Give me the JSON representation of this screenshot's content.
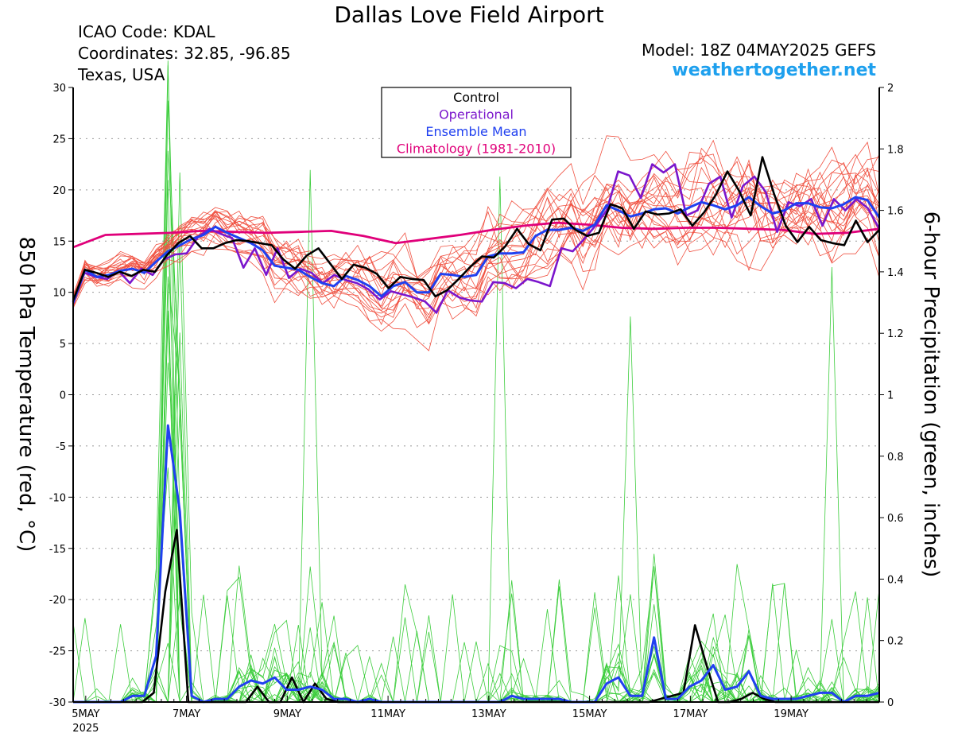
{
  "header": {
    "title": "Dallas Love Field Airport",
    "icao": "ICAO Code: KDAL",
    "coordinates": "Coordinates: 32.85, -96.85",
    "location": "Texas, USA",
    "model": "Model: 18Z 04MAY2025 GEFS",
    "site": "weathertogether.net"
  },
  "chart_data": {
    "type": "line",
    "title": "Dallas Love Field Airport",
    "ylabel_left": "850 hPa Temperature (red, °C)",
    "ylabel_right": "6-hour Precipitation (green, inches)",
    "y_left_range": [
      -30,
      30
    ],
    "y_right_range": [
      0,
      2
    ],
    "y_left_ticks": [
      "30",
      "25",
      "20",
      "15",
      "10",
      "5",
      "0",
      "-5",
      "-10",
      "-15",
      "-20",
      "-25",
      "-30"
    ],
    "y_right_ticks": [
      "2",
      "1.8",
      "1.6",
      "1.4",
      "1.2",
      "1",
      "0.8",
      "0.6",
      "0.4",
      "0.2",
      "0"
    ],
    "x_ticks": [
      {
        "day": 5,
        "label": "5MAY",
        "sub": "2025"
      },
      {
        "day": 7,
        "label": "7MAY"
      },
      {
        "day": 9,
        "label": "9MAY"
      },
      {
        "day": 11,
        "label": "11MAY"
      },
      {
        "day": 13,
        "label": "13MAY"
      },
      {
        "day": 15,
        "label": "15MAY"
      },
      {
        "day": 17,
        "label": "17MAY"
      },
      {
        "day": 19,
        "label": "19MAY"
      }
    ],
    "x_range_days": [
      4.75,
      20.75
    ],
    "grid": "horizontal dotted",
    "legend": {
      "position": "top-center",
      "entries": [
        {
          "label": "Control",
          "color": "#000000"
        },
        {
          "label": "Operational",
          "color": "#7b16cc"
        },
        {
          "label": "Ensemble Mean",
          "color": "#2040f0"
        },
        {
          "label": "Climatology (1981-2010)",
          "color": "#e0007a"
        }
      ]
    },
    "colors": {
      "members_temp": "#f05040",
      "members_precip": "#3ccd3c",
      "control": "#000000",
      "operational": "#7b16cc",
      "mean": "#2040f0",
      "climatology": "#e0007a"
    },
    "series": [
      {
        "name": "Control",
        "axis": "temperature",
        "values": [
          9.2,
          12.2,
          11.9,
          11.5,
          12.0,
          11.6,
          12.2,
          12.0,
          13.6,
          14.8,
          15.5,
          14.3,
          14.3,
          14.8,
          15.1,
          15.0,
          14.8,
          14.6,
          13.2,
          12.3,
          13.6,
          14.3,
          12.8,
          11.3,
          12.7,
          12.4,
          11.8,
          10.4,
          11.5,
          11.3,
          11.2,
          9.6,
          10.2,
          11.3,
          12.5,
          13.5,
          13.4,
          14.5,
          16.2,
          14.7,
          14.1,
          17.1,
          17.2,
          16.1,
          15.5,
          15.8,
          18.6,
          18.2,
          16.2,
          17.9,
          17.6,
          17.7,
          18.1,
          16.5,
          17.8,
          19.5,
          21.8,
          19.9,
          17.5,
          23.2,
          19.6,
          16.5,
          14.9,
          16.4,
          15.1,
          14.8,
          14.6,
          17.0,
          14.9,
          16.1
        ]
      },
      {
        "name": "Operational",
        "axis": "temperature",
        "values": [
          8.9,
          11.9,
          11.5,
          11.3,
          12.1,
          10.9,
          12.3,
          11.7,
          13.2,
          13.7,
          13.8,
          15.4,
          16.2,
          15.7,
          15.3,
          12.4,
          14.3,
          11.7,
          14.3,
          11.4,
          12.3,
          11.9,
          10.9,
          11.7,
          11.2,
          10.9,
          10.3,
          9.3,
          10.1,
          9.8,
          9.5,
          9.1,
          8.0,
          10.2,
          9.5,
          9.2,
          9.1,
          11.0,
          10.9,
          10.4,
          11.3,
          11.0,
          10.6,
          14.3,
          14.0,
          15.2,
          16.5,
          18.0,
          21.8,
          21.4,
          19.2,
          22.5,
          21.7,
          22.5,
          17.5,
          18.0,
          20.6,
          21.3,
          17.3,
          20.4,
          21.3,
          19.8,
          15.9,
          18.8,
          18.4,
          19.1,
          16.5,
          19.1,
          18.0,
          19.1,
          18.2,
          16.2
        ]
      },
      {
        "name": "Ensemble Mean",
        "axis": "temperature",
        "values": [
          9.0,
          12.2,
          11.5,
          11.7,
          12.1,
          12.3,
          11.9,
          13.0,
          14.0,
          14.6,
          15.2,
          15.6,
          16.4,
          15.8,
          15.3,
          14.8,
          14.1,
          12.6,
          12.4,
          12.2,
          11.5,
          10.9,
          10.6,
          11.6,
          11.2,
          10.6,
          9.6,
          10.6,
          11.0,
          10.0,
          10.0,
          11.8,
          11.7,
          11.5,
          11.7,
          13.5,
          13.8,
          13.8,
          13.9,
          15.5,
          16.1,
          16.1,
          16.3,
          16.0,
          16.6,
          18.5,
          18.0,
          17.4,
          17.7,
          18.1,
          18.2,
          17.7,
          18.3,
          18.8,
          18.5,
          18.1,
          18.5,
          19.3,
          18.4,
          17.7,
          18.0,
          18.7,
          18.7,
          18.3,
          18.2,
          18.6,
          19.3,
          19.0,
          17.3
        ]
      },
      {
        "name": "Climatology (1981-2010)",
        "axis": "temperature",
        "values": [
          14.4,
          15.6,
          15.7,
          15.8,
          16.0,
          15.9,
          15.8,
          15.9,
          16.0,
          15.5,
          14.8,
          15.2,
          15.6,
          16.1,
          16.5,
          16.8,
          16.6,
          16.3,
          16.2,
          16.3,
          16.3,
          16.2,
          16.1,
          15.7,
          15.8,
          16.2
        ]
      },
      {
        "name": "Control",
        "axis": "precipitation",
        "values": [
          0,
          0,
          0,
          0,
          0,
          0,
          0,
          0.03,
          0.36,
          0.56,
          0,
          0,
          0,
          0,
          0,
          0,
          0.05,
          0,
          0,
          0.08,
          0,
          0.06,
          0.01,
          0,
          0,
          0,
          0,
          0,
          0,
          0,
          0,
          0,
          0,
          0,
          0,
          0,
          0,
          0,
          0,
          0,
          0,
          0,
          0,
          0,
          0,
          0,
          0,
          0,
          0,
          0,
          0,
          0.01,
          0.02,
          0.03,
          0.25,
          0.12,
          0,
          0,
          0.01,
          0.03,
          0.01,
          0,
          0,
          0,
          0,
          0,
          0,
          0,
          0,
          0,
          0
        ]
      },
      {
        "name": "Ensemble Mean",
        "axis": "precipitation",
        "values": [
          0,
          0,
          0,
          0,
          0,
          0.02,
          0.02,
          0.15,
          0.9,
          0.62,
          0.02,
          0,
          0.01,
          0.01,
          0.05,
          0.07,
          0.06,
          0.08,
          0.04,
          0.04,
          0.05,
          0.04,
          0.01,
          0.01,
          0,
          0.01,
          0,
          0,
          0,
          0,
          0,
          0,
          0,
          0,
          0,
          0,
          0,
          0.02,
          0.01,
          0.01,
          0.01,
          0.01,
          0,
          0,
          0,
          0.06,
          0.08,
          0.02,
          0.02,
          0.21,
          0.01,
          0.01,
          0.05,
          0.07,
          0.12,
          0.04,
          0.05,
          0.1,
          0.02,
          0.01,
          0.01,
          0.01,
          0.02,
          0.03,
          0.03,
          0,
          0.02,
          0.02,
          0.03
        ]
      }
    ]
  }
}
